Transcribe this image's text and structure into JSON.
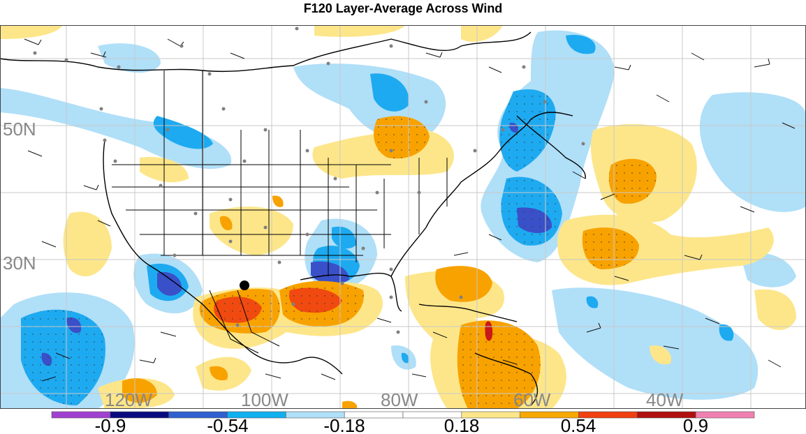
{
  "title": "F120 Layer-Average Across Wind",
  "latitude_labels": [
    "50N",
    "30N"
  ],
  "longitude_labels": [
    "120W",
    "100W",
    "80W",
    "60W",
    "40W"
  ],
  "colorbar": {
    "tick_labels": [
      "-0.9",
      "-0.54",
      "-0.18",
      "0.18",
      "0.54",
      "0.9"
    ],
    "colors": [
      "#a040d0",
      "#0a0a80",
      "#3060d0",
      "#10b0f0",
      "#b0e0f8",
      "#ffffff",
      "#ffffff",
      "#fde68a",
      "#f8a800",
      "#f04010",
      "#b01010",
      "#f080b0"
    ]
  },
  "palette": {
    "light_blue": "#b0dff8",
    "mid_blue": "#1eaaf0",
    "dark_blue": "#3a50c8",
    "light_yellow": "#fde68a",
    "orange": "#f8a200",
    "red_orange": "#f04a10",
    "red": "#c81818",
    "station_dot": "#808080"
  }
}
